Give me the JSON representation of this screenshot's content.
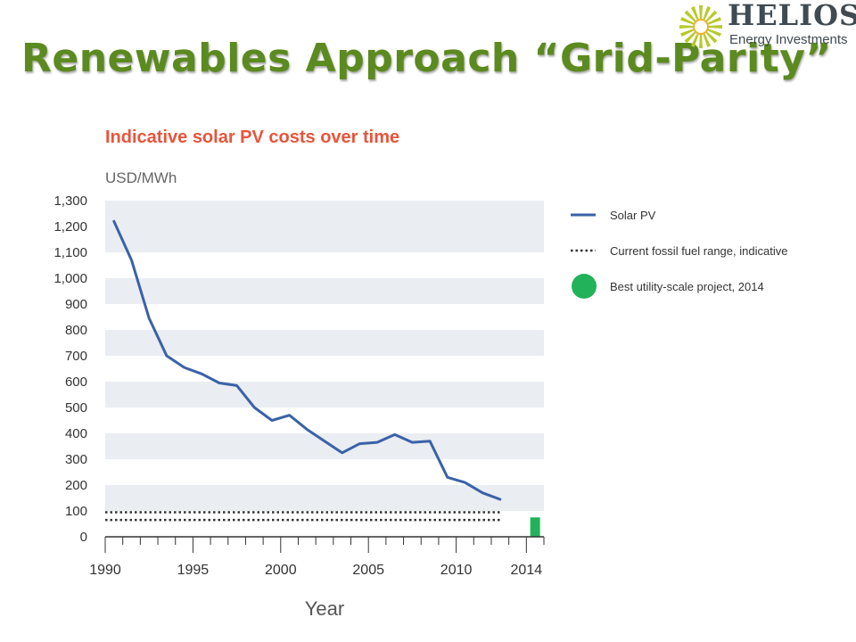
{
  "slide": {
    "title": "Renewables Approach “Grid-Parity”"
  },
  "logo": {
    "name": "HELIOS",
    "subtitle": "Energy Investments",
    "icon": "sunburst-logo-icon"
  },
  "colors": {
    "title": "#5b8a1e",
    "chart_title": "#e8553a",
    "solar_line": "#3a62a8",
    "best_project": "#22b35a",
    "band": "#eaedf2"
  },
  "chart_data": {
    "type": "line",
    "title": "Indicative solar PV costs over time",
    "ylabel": "USD/MWh",
    "xlabel": "Year",
    "ylim": [
      0,
      1300
    ],
    "xlim": [
      1990,
      2015
    ],
    "y_ticks": [
      0,
      100,
      200,
      300,
      400,
      500,
      600,
      700,
      800,
      900,
      1000,
      1100,
      1200,
      1300
    ],
    "y_tick_labels": [
      "0",
      "100",
      "200",
      "300",
      "400",
      "500",
      "600",
      "700",
      "800",
      "900",
      "1,000",
      "1,100",
      "1,200",
      "1,300"
    ],
    "x_ticks": [
      1990,
      1995,
      2000,
      2005,
      2010,
      2014
    ],
    "x_tick_labels": [
      "1990",
      "1995",
      "2000",
      "2005",
      "2010",
      "2014"
    ],
    "legend_position": "right",
    "series": [
      {
        "name": "Solar PV",
        "style": "solid",
        "x": [
          1990.5,
          1991.5,
          1992.5,
          1993.5,
          1994.5,
          1995.5,
          1996.5,
          1997.5,
          1998.5,
          1999.5,
          2000.5,
          2001.5,
          2002.5,
          2003.5,
          2004.5,
          2005.5,
          2006.5,
          2007.5,
          2008.5,
          2009.5,
          2010.5,
          2011.5,
          2012.5
        ],
        "values": [
          1220,
          1070,
          845,
          700,
          655,
          630,
          595,
          585,
          500,
          450,
          470,
          415,
          370,
          325,
          360,
          365,
          395,
          365,
          370,
          230,
          210,
          170,
          145
        ]
      },
      {
        "name": "Current fossil fuel range, indicative",
        "style": "dotted",
        "range_x": [
          1990,
          2012.5
        ],
        "range_y": [
          65,
          95
        ]
      },
      {
        "name": "Best utility-scale project, 2014",
        "style": "bar",
        "x": 2014.5,
        "value": 75
      }
    ]
  }
}
